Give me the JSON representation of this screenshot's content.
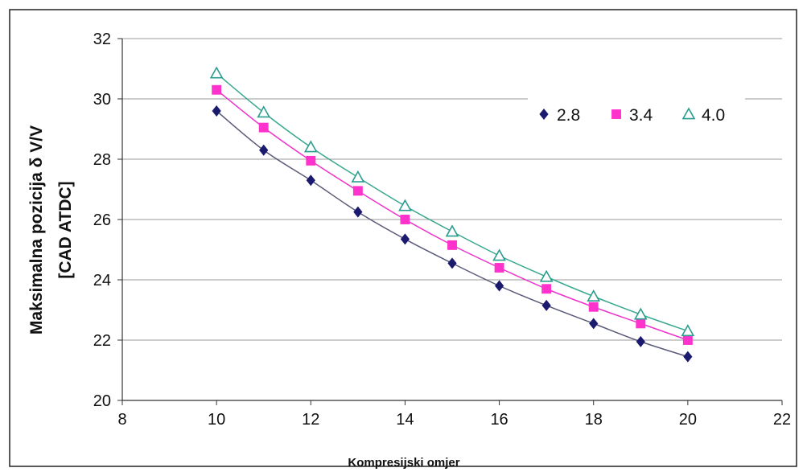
{
  "chart_data": {
    "type": "scatter",
    "xlabel": "Kompresijski omjer",
    "ylabel_line1": "Maksimalna pozicija  δ V/V",
    "ylabel_line2": "[CAD ATDC]",
    "xlim": [
      8,
      22
    ],
    "ylim": [
      20,
      32
    ],
    "xticks": [
      8,
      10,
      12,
      14,
      16,
      18,
      20,
      22
    ],
    "yticks": [
      20,
      22,
      24,
      26,
      28,
      30,
      32
    ],
    "xtick_labels": [
      "8",
      "10",
      "12",
      "14",
      "16",
      "18",
      "20",
      "22"
    ],
    "ytick_labels": [
      "20",
      "22",
      "24",
      "26",
      "28",
      "30",
      "32"
    ],
    "grid": "horizontal",
    "legend_position": "top-right",
    "x": [
      10,
      11,
      12,
      13,
      14,
      15,
      16,
      17,
      18,
      19,
      20
    ],
    "series": [
      {
        "name": "2.8",
        "marker": "diamond",
        "color": "#1a1a6e",
        "line_color": "#5a5a7a",
        "values": [
          29.6,
          28.3,
          27.3,
          26.25,
          25.35,
          24.55,
          23.8,
          23.15,
          22.55,
          21.95,
          21.45
        ]
      },
      {
        "name": "3.4",
        "marker": "square",
        "color": "#ff33cc",
        "line_color": "#ee33cc",
        "values": [
          30.3,
          29.05,
          27.95,
          26.95,
          26.0,
          25.15,
          24.4,
          23.7,
          23.1,
          22.55,
          22.0
        ]
      },
      {
        "name": "4.0",
        "marker": "triangle",
        "color": "#2a9d8f",
        "line_color": "#3aa88f",
        "values": [
          30.85,
          29.55,
          28.4,
          27.4,
          26.45,
          25.6,
          24.8,
          24.1,
          23.45,
          22.85,
          22.3
        ]
      }
    ]
  }
}
